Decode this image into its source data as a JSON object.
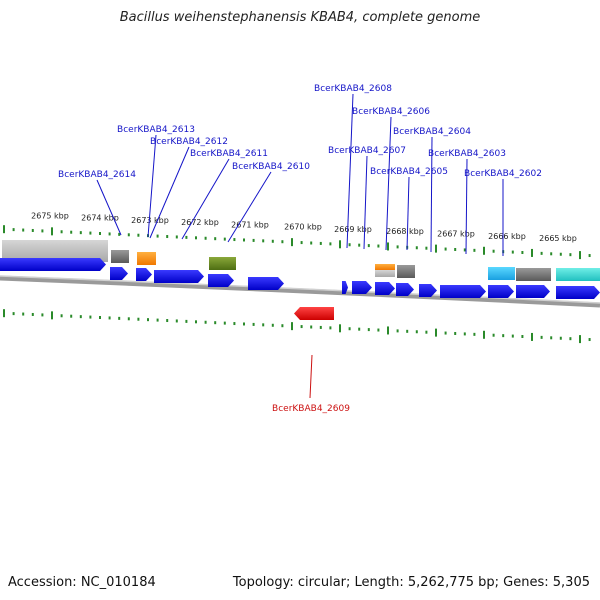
{
  "title": "Bacillus weihenstephanensis KBAB4, complete genome",
  "footer": {
    "accession_label": "Accession: NC_010184",
    "summary": "Topology: circular; Length: 5,262,775 bp; Genes: 5,305"
  },
  "colors": {
    "forward_gene": "#1010ee",
    "reverse_gene": "#ee1111",
    "gene_label": "#1515c8",
    "reverse_label": "#cc1111",
    "tick": "#2a8a2a",
    "track": "#8e8e8e"
  },
  "kbp_ticks": [
    "2675 kbp",
    "2674 kbp",
    "2673 kbp",
    "2672 kbp",
    "2671 kbp",
    "2670 kbp",
    "2669 kbp",
    "2668 kbp",
    "2667 kbp",
    "2666 kbp",
    "2665 kbp"
  ],
  "gene_labels": [
    "BcerKBAB4_2614",
    "BcerKBAB4_2613",
    "BcerKBAB4_2612",
    "BcerKBAB4_2611",
    "BcerKBAB4_2610",
    "BcerKBAB4_2608",
    "BcerKBAB4_2607",
    "BcerKBAB4_2606",
    "BcerKBAB4_2605",
    "BcerKBAB4_2604",
    "BcerKBAB4_2603",
    "BcerKBAB4_2602"
  ],
  "reverse_gene_labels": [
    "BcerKBAB4_2609"
  ]
}
